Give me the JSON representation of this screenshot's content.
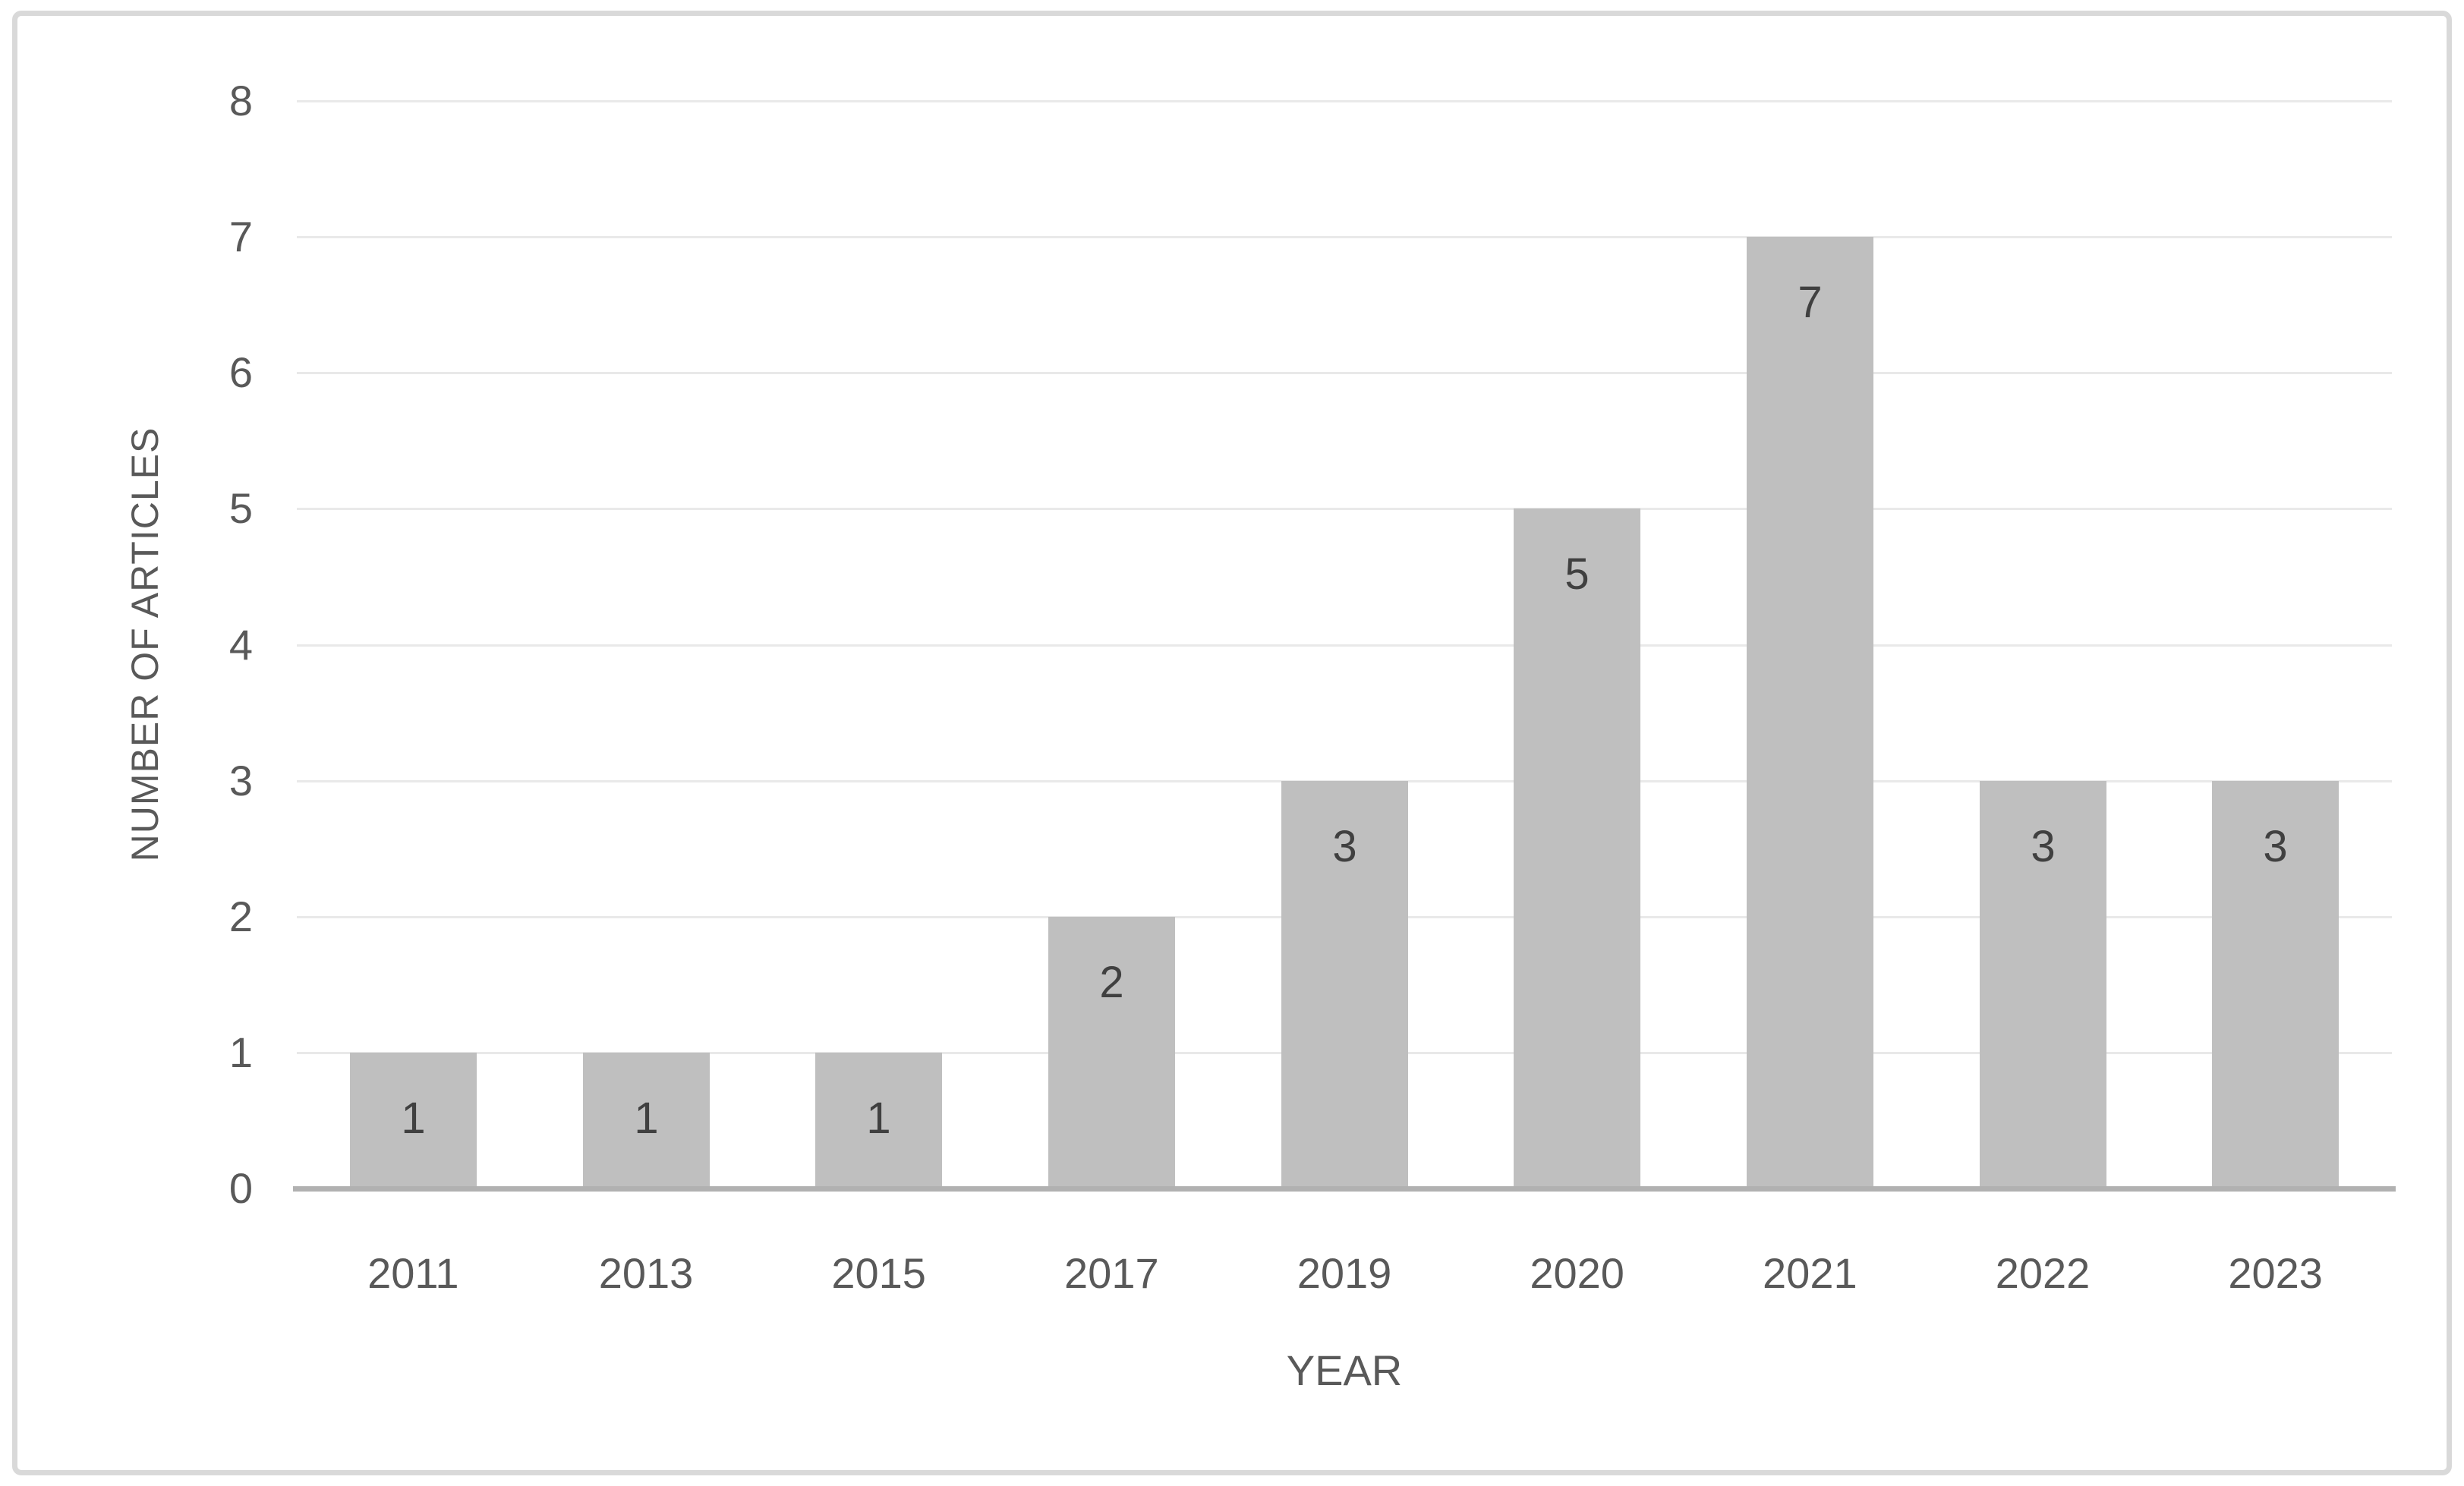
{
  "chart_data": {
    "type": "bar",
    "title": "",
    "xlabel": "YEAR",
    "ylabel": "NUMBER OF ARTICLES",
    "categories": [
      "2011",
      "2013",
      "2015",
      "2017",
      "2019",
      "2020",
      "2021",
      "2022",
      "2023"
    ],
    "values": [
      1,
      1,
      1,
      2,
      3,
      5,
      7,
      3,
      3
    ],
    "series_name": "Number of articles",
    "ylim": [
      0,
      8
    ],
    "yticks": [
      0,
      1,
      2,
      3,
      4,
      5,
      6,
      7,
      8
    ],
    "grid": "horizontal",
    "legend_position": "none",
    "data_label_position": "inside-end",
    "colors": {
      "bar_fill": "#BFBFBF",
      "data_label": "#404040",
      "tick_label": "#595959",
      "axis_title": "#595959",
      "gridline": "#E9E9E9",
      "axis_line": "#B1B1B1",
      "frame_border": "#D9D9D9",
      "background": "#FFFFFF"
    }
  }
}
